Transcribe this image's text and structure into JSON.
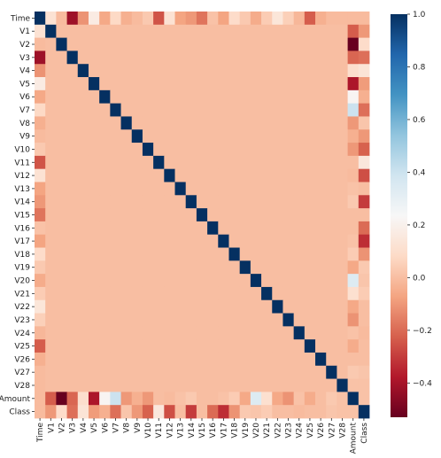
{
  "chart_data": {
    "type": "heatmap",
    "title": "",
    "xlabel": "",
    "ylabel": "",
    "labels": [
      "Time",
      "V1",
      "V2",
      "V3",
      "V4",
      "V5",
      "V6",
      "V7",
      "V8",
      "V9",
      "V10",
      "V11",
      "V12",
      "V13",
      "V14",
      "V15",
      "V16",
      "V17",
      "V18",
      "V19",
      "V20",
      "V21",
      "V22",
      "V23",
      "V24",
      "V25",
      "V26",
      "V27",
      "V28",
      "Amount",
      "Class"
    ],
    "colorbar": {
      "range": [
        -0.53,
        1.0
      ],
      "ticks": [
        -0.4,
        -0.2,
        0.0,
        0.2,
        0.4,
        0.6,
        0.8,
        1.0
      ],
      "tick_labels": [
        "−0.4",
        "−0.2",
        "0.0",
        "0.2",
        "0.4",
        "0.6",
        "0.8",
        "1.0"
      ],
      "colormap": "RdBu"
    },
    "row_time": [
      1.0,
      0.12,
      -0.01,
      -0.42,
      -0.11,
      0.17,
      -0.06,
      0.08,
      -0.04,
      -0.01,
      0.03,
      -0.25,
      0.12,
      -0.07,
      -0.1,
      -0.18,
      0.01,
      -0.07,
      0.09,
      0.03,
      -0.05,
      0.04,
      0.14,
      0.05,
      -0.02,
      -0.23,
      -0.04,
      -0.01,
      -0.01,
      -0.01,
      -0.01
    ],
    "amount_row": [
      -0.01,
      -0.23,
      -0.53,
      -0.21,
      0.1,
      -0.39,
      0.22,
      0.4,
      -0.1,
      -0.04,
      -0.1,
      0.0,
      -0.01,
      0.01,
      0.03,
      -0.0,
      -0.0,
      0.01,
      0.04,
      -0.06,
      0.34,
      0.11,
      -0.06,
      -0.11,
      0.01,
      -0.05,
      -0.0,
      0.03,
      0.01,
      1.0,
      0.01
    ],
    "class_row": [
      -0.01,
      -0.1,
      0.09,
      -0.19,
      0.13,
      -0.09,
      -0.04,
      -0.19,
      0.02,
      -0.1,
      -0.22,
      0.15,
      -0.26,
      -0.0,
      -0.3,
      -0.0,
      -0.2,
      -0.33,
      -0.11,
      0.03,
      0.02,
      0.04,
      0.0,
      -0.0,
      -0.01,
      0.0,
      0.0,
      0.02,
      0.01,
      0.01,
      1.0
    ],
    "default_value": 0.0
  }
}
